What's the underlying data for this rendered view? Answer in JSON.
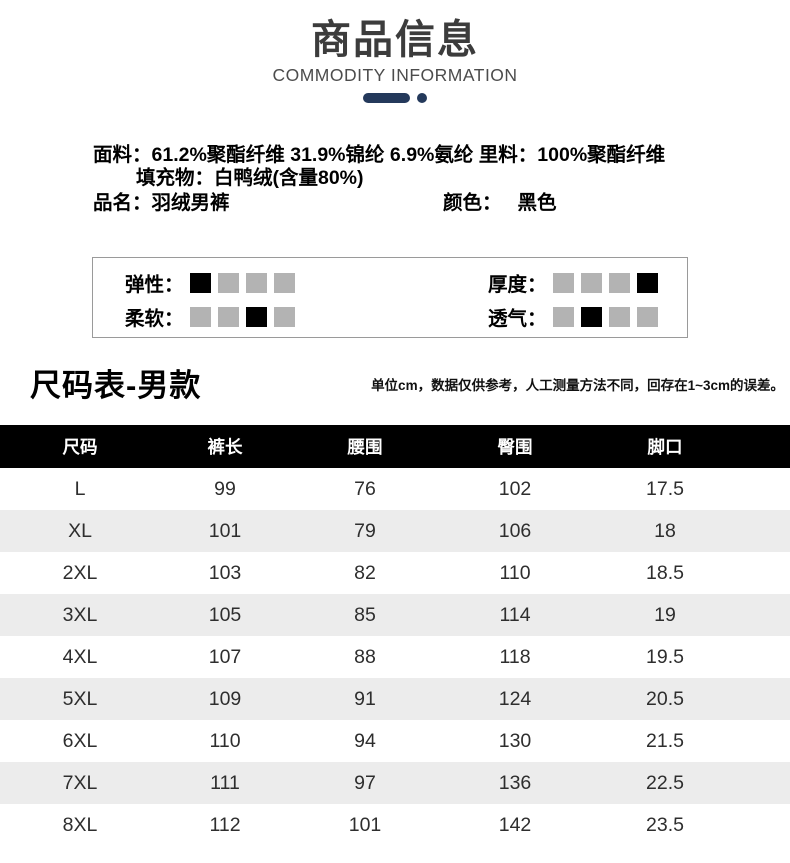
{
  "header": {
    "title": "商品信息",
    "subtitle": "COMMODITY INFORMATION"
  },
  "info": {
    "fabric_label": "面料：",
    "fabric_value": "61.2%聚酯纤维 31.9%锦纶 6.9%氨纶 里料：100%聚酯纤维",
    "filling_line": "填充物：白鸭绒(含量80%)",
    "name_label": "品名：",
    "name_value": "羽绒男裤",
    "color_label": "颜色：",
    "color_value": "黑色"
  },
  "properties": {
    "scale_max": 4,
    "items": [
      {
        "label": "弹性：",
        "level_index": 1
      },
      {
        "label": "厚度：",
        "level_index": 4
      },
      {
        "label": "柔软：",
        "level_index": 3
      },
      {
        "label": "透气：",
        "level_index": 2
      }
    ]
  },
  "size_chart": {
    "title": "尺码表-男款",
    "note": "单位cm，数据仅供参考，人工测量方法不同，回存在1~3cm的误差。",
    "columns": [
      "尺码",
      "裤长",
      "腰围",
      "臀围",
      "脚口"
    ],
    "rows": [
      [
        "L",
        "99",
        "76",
        "102",
        "17.5"
      ],
      [
        "XL",
        "101",
        "79",
        "106",
        "18"
      ],
      [
        "2XL",
        "103",
        "82",
        "110",
        "18.5"
      ],
      [
        "3XL",
        "105",
        "85",
        "114",
        "19"
      ],
      [
        "4XL",
        "107",
        "88",
        "118",
        "19.5"
      ],
      [
        "5XL",
        "109",
        "91",
        "124",
        "20.5"
      ],
      [
        "6XL",
        "110",
        "94",
        "130",
        "21.5"
      ],
      [
        "7XL",
        "111",
        "97",
        "136",
        "22.5"
      ],
      [
        "8XL",
        "112",
        "101",
        "142",
        "23.5"
      ]
    ]
  },
  "colors": {
    "accent_navy": "#24395b",
    "block_active": "#000000",
    "block_inactive": "#b3b3b3",
    "table_header_bg": "#000000",
    "table_stripe_bg": "#ececec"
  }
}
